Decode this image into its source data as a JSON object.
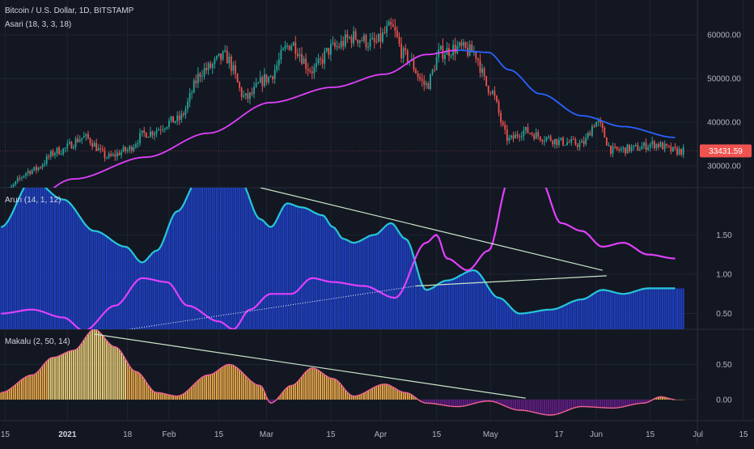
{
  "header": {
    "symbol_line": "Bitcoin / U.S. Dollar, 1D, BITSTAMP",
    "price_label": "33431.59"
  },
  "colors": {
    "background": "#131722",
    "grid": "#1f2433",
    "candle_up": "#26a69a",
    "candle_down": "#ef5350",
    "asari_line_1": "#e040fb",
    "asari_line_2": "#2962ff",
    "arun_bars": "#1e3fbf",
    "arun_up_line": "#26c6da",
    "arun_down_line": "#e040fb",
    "makalu_pos": "#ffb74d",
    "makalu_peak": "#ffe082",
    "makalu_neg": "#7b1fa2",
    "trendline": "#c8e6c9",
    "price_tag": "#ef5350"
  },
  "chart_data": [
    {
      "type": "candlestick",
      "name": "Asari (18, 3, 3, 18)",
      "y_ticks": [
        "60000.00",
        "50000.00",
        "40000.00",
        "30000.00"
      ],
      "y_tick_values": [
        60000,
        50000,
        40000,
        30000
      ],
      "ylim": [
        25000,
        68000
      ],
      "last_price": 33431.59,
      "close_anchors": [
        [
          0,
          23500
        ],
        [
          15,
          29000
        ],
        [
          28,
          33500
        ],
        [
          40,
          36500
        ],
        [
          52,
          32000
        ],
        [
          60,
          33500
        ],
        [
          70,
          37500
        ],
        [
          85,
          40500
        ],
        [
          98,
          52000
        ],
        [
          108,
          55000
        ],
        [
          118,
          45500
        ],
        [
          128,
          50000
        ],
        [
          140,
          58000
        ],
        [
          150,
          52000
        ],
        [
          160,
          57000
        ],
        [
          170,
          59500
        ],
        [
          180,
          58000
        ],
        [
          188,
          61500
        ],
        [
          195,
          55000
        ],
        [
          205,
          48500
        ],
        [
          212,
          56000
        ],
        [
          220,
          57000
        ],
        [
          228,
          56000
        ],
        [
          235,
          48000
        ],
        [
          245,
          36000
        ],
        [
          252,
          38000
        ],
        [
          262,
          36500
        ],
        [
          270,
          35500
        ],
        [
          280,
          35000
        ],
        [
          287,
          40000
        ],
        [
          295,
          33500
        ],
        [
          305,
          34000
        ],
        [
          315,
          35000
        ],
        [
          325,
          33400
        ]
      ],
      "asari_line_1": [
        [
          2,
          17000
        ],
        [
          35,
          27000
        ],
        [
          70,
          32000
        ],
        [
          100,
          37500
        ],
        [
          130,
          44500
        ],
        [
          160,
          48000
        ],
        [
          185,
          51000
        ],
        [
          205,
          55500
        ],
        [
          220,
          56500
        ]
      ],
      "asari_line_2": [
        [
          220,
          56500
        ],
        [
          235,
          56000
        ],
        [
          245,
          52000
        ],
        [
          260,
          46500
        ],
        [
          280,
          41500
        ],
        [
          300,
          39000
        ],
        [
          325,
          36500
        ]
      ]
    },
    {
      "type": "bar+line",
      "name": "Arun (14, 1, 12)",
      "y_ticks": [
        "1.50",
        "1.00",
        "0.50"
      ],
      "y_tick_values": [
        1.5,
        1.0,
        0.5
      ],
      "ylim": [
        0.3,
        2.1
      ],
      "up_line": [
        [
          0,
          1.6
        ],
        [
          15,
          2.2
        ],
        [
          30,
          1.95
        ],
        [
          45,
          1.55
        ],
        [
          60,
          1.35
        ],
        [
          68,
          1.15
        ],
        [
          75,
          1.3
        ],
        [
          85,
          1.8
        ],
        [
          95,
          2.2
        ],
        [
          115,
          2.2
        ],
        [
          125,
          1.7
        ],
        [
          130,
          1.6
        ],
        [
          138,
          1.9
        ],
        [
          145,
          1.85
        ],
        [
          155,
          1.75
        ],
        [
          160,
          1.6
        ],
        [
          165,
          1.45
        ],
        [
          170,
          1.4
        ],
        [
          180,
          1.5
        ],
        [
          188,
          1.65
        ],
        [
          195,
          1.45
        ],
        [
          205,
          0.8
        ],
        [
          215,
          0.92
        ],
        [
          228,
          1.05
        ],
        [
          240,
          0.7
        ],
        [
          250,
          0.5
        ],
        [
          265,
          0.55
        ],
        [
          280,
          0.68
        ],
        [
          290,
          0.8
        ],
        [
          300,
          0.75
        ],
        [
          312,
          0.82
        ],
        [
          325,
          0.82
        ]
      ],
      "down_line": [
        [
          0,
          0.5
        ],
        [
          15,
          0.55
        ],
        [
          30,
          0.45
        ],
        [
          40,
          0.28
        ],
        [
          55,
          0.6
        ],
        [
          68,
          0.95
        ],
        [
          80,
          0.9
        ],
        [
          90,
          0.6
        ],
        [
          105,
          0.4
        ],
        [
          112,
          0.3
        ],
        [
          120,
          0.55
        ],
        [
          130,
          0.75
        ],
        [
          140,
          0.75
        ],
        [
          150,
          0.95
        ],
        [
          160,
          0.9
        ],
        [
          175,
          0.85
        ],
        [
          190,
          0.7
        ],
        [
          205,
          1.4
        ],
        [
          210,
          1.5
        ],
        [
          215,
          1.2
        ],
        [
          225,
          1.05
        ],
        [
          235,
          1.3
        ],
        [
          245,
          2.2
        ],
        [
          260,
          2.2
        ],
        [
          270,
          1.65
        ],
        [
          280,
          1.55
        ],
        [
          290,
          1.35
        ],
        [
          300,
          1.4
        ],
        [
          312,
          1.25
        ],
        [
          325,
          1.2
        ]
      ]
    },
    {
      "type": "bar",
      "name": "Makalu (2, 50, 14)",
      "y_ticks": [
        "0.50",
        "0.00"
      ],
      "y_tick_values": [
        0.5,
        0.0
      ],
      "ylim": [
        -0.3,
        1.0
      ],
      "values": [
        [
          0,
          0.1
        ],
        [
          15,
          0.35
        ],
        [
          25,
          0.6
        ],
        [
          35,
          0.7
        ],
        [
          45,
          1.0
        ],
        [
          55,
          0.75
        ],
        [
          65,
          0.4
        ],
        [
          75,
          0.1
        ],
        [
          85,
          0.05
        ],
        [
          100,
          0.35
        ],
        [
          110,
          0.5
        ],
        [
          125,
          0.2
        ],
        [
          130,
          -0.05
        ],
        [
          140,
          0.2
        ],
        [
          150,
          0.45
        ],
        [
          160,
          0.3
        ],
        [
          170,
          0.05
        ],
        [
          185,
          0.22
        ],
        [
          195,
          0.1
        ],
        [
          205,
          -0.05
        ],
        [
          220,
          -0.1
        ],
        [
          235,
          -0.02
        ],
        [
          250,
          -0.15
        ],
        [
          265,
          -0.22
        ],
        [
          280,
          -0.1
        ],
        [
          295,
          -0.12
        ],
        [
          310,
          -0.05
        ],
        [
          318,
          0.04
        ],
        [
          325,
          0.0
        ]
      ]
    }
  ],
  "x_axis": {
    "labels": [
      "15",
      "2021",
      "18",
      "Feb",
      "15",
      "Mar",
      "15",
      "Apr",
      "15",
      "May",
      "17",
      "Jun",
      "15",
      "Jul",
      "15"
    ],
    "label_bars": [
      2,
      32,
      61,
      81,
      105,
      128,
      159,
      183,
      210,
      236,
      269,
      287,
      313,
      336,
      358
    ]
  }
}
